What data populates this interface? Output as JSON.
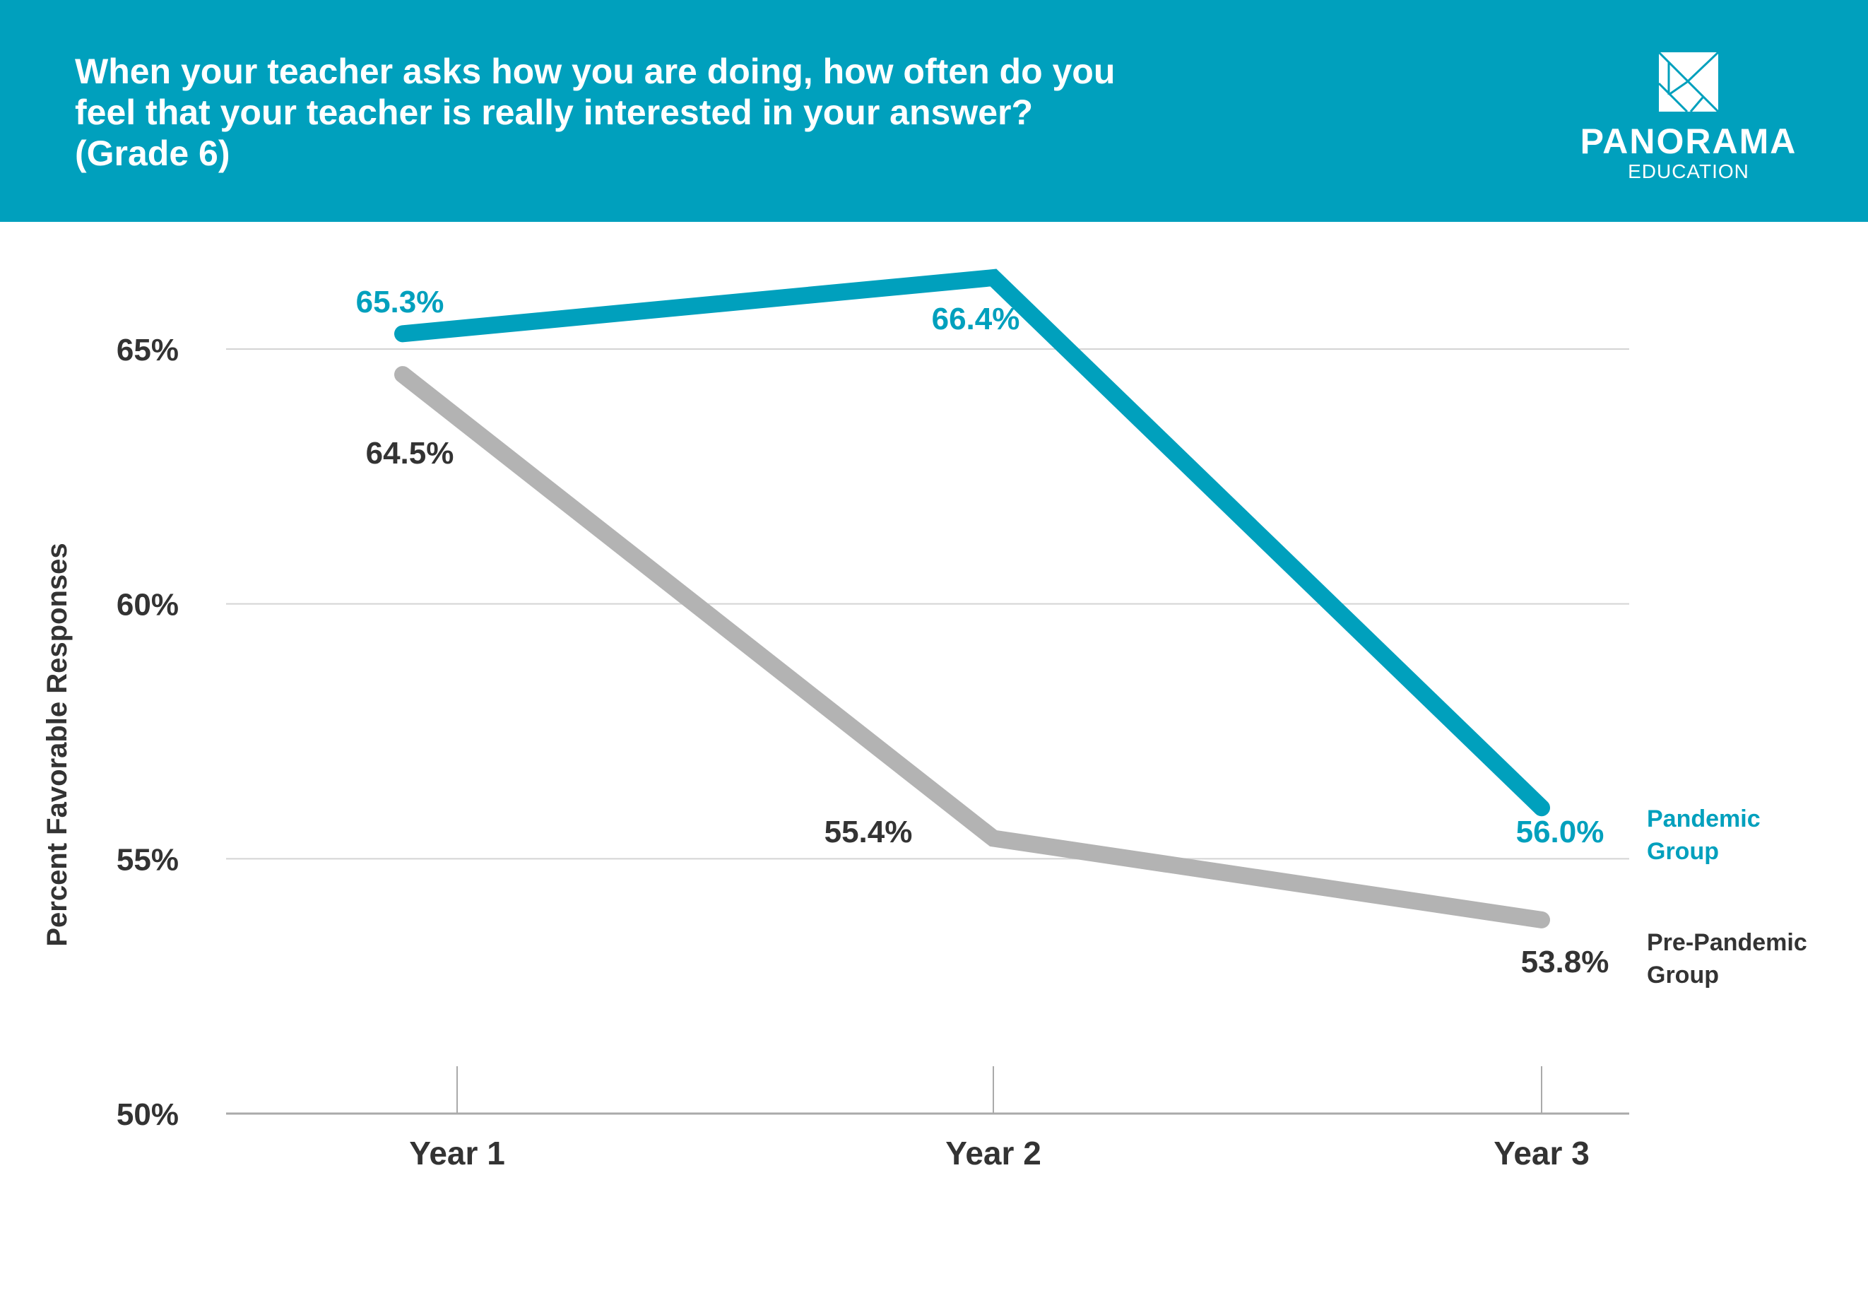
{
  "header": {
    "title_lines": [
      "When your teacher asks how you are doing, how often do you",
      "feel that your teacher is really interested in your answer?",
      "(Grade 6)"
    ],
    "logo": {
      "brand": "PANORAMA",
      "sub": "EDUCATION"
    },
    "background": "#00a0bd"
  },
  "chart_data": {
    "type": "line",
    "title": "When your teacher asks how you are doing, how often do you feel that your teacher is really interested in your answer? (Grade 6)",
    "xlabel": "",
    "ylabel": "Percent Favorable Responses",
    "categories": [
      "Year 1",
      "Year 2",
      "Year 3"
    ],
    "ylim": [
      50,
      65
    ],
    "yticks": [
      50,
      55,
      60,
      65
    ],
    "ytick_labels": [
      "50%",
      "55%",
      "60%",
      "65%"
    ],
    "grid": true,
    "legend_placement": "right, at line ends",
    "series": [
      {
        "name": "Pandemic Group",
        "legend_lines": [
          "Pandemic",
          "Group"
        ],
        "values": [
          65.3,
          66.4,
          56.0
        ],
        "labels": [
          "65.3%",
          "66.4%",
          "56.0%"
        ],
        "color": "#00a0bd"
      },
      {
        "name": "Pre-Pandemic Group",
        "legend_lines": [
          "Pre-Pandemic",
          "Group"
        ],
        "values": [
          64.5,
          55.4,
          53.8
        ],
        "labels": [
          "64.5%",
          "55.4%",
          "53.8%"
        ],
        "color": "#b3b3b3",
        "label_color": "#333333"
      }
    ]
  }
}
